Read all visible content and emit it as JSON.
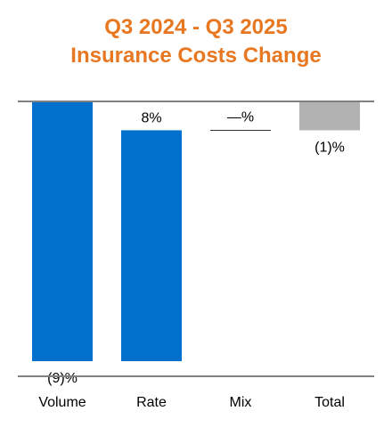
{
  "chart_data": {
    "type": "bar",
    "subtype": "waterfall",
    "title": [
      "Q3 2024 - Q3 2025",
      "Insurance Costs Change"
    ],
    "categories": [
      "Volume",
      "Rate",
      "Mix",
      "Total"
    ],
    "values": [
      -9,
      8,
      0,
      -1
    ],
    "value_labels": [
      "(9)%",
      "8%",
      "—%",
      "(1)%"
    ],
    "kinds": [
      "change",
      "change",
      "change",
      "total"
    ],
    "ylim": [
      -9,
      0
    ],
    "grid": false,
    "legend": "none"
  },
  "colors": {
    "title": "#E87722",
    "change_bar": "#0070CC",
    "total_bar": "#B2B2B2",
    "axis_line": "#808080",
    "text": "#000000"
  }
}
